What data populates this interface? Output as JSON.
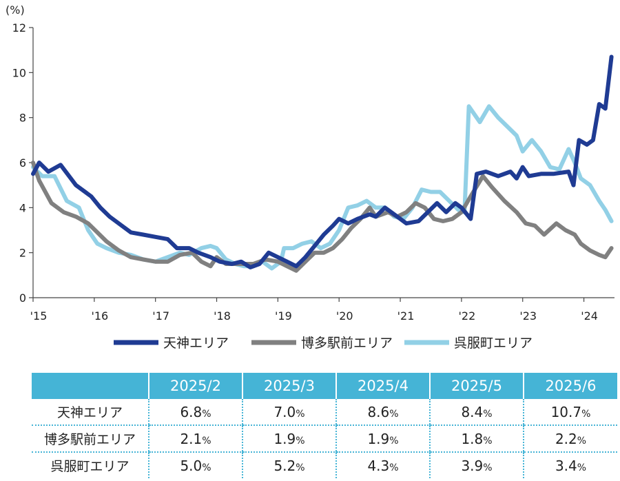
{
  "chart_data": {
    "type": "line",
    "y_unit_label": "(%)",
    "ylim": [
      0,
      12
    ],
    "y_ticks": [
      "0",
      "2",
      "4",
      "6",
      "8",
      "10",
      "12"
    ],
    "x_tick_labels": [
      "'15",
      "'16",
      "'17",
      "'18",
      "'19",
      "'20",
      "'21",
      "'22",
      "'23",
      "'24"
    ],
    "x_start": 2015.0,
    "x_end": 2024.5,
    "grid": false,
    "legend_position": "bottom",
    "series": [
      {
        "name": "天神エリア",
        "color": "#1f3b93",
        "points": [
          [
            2015.0,
            5.5
          ],
          [
            2015.1,
            6.0
          ],
          [
            2015.25,
            5.6
          ],
          [
            2015.45,
            5.9
          ],
          [
            2015.7,
            5.0
          ],
          [
            2015.95,
            4.5
          ],
          [
            2016.1,
            4.0
          ],
          [
            2016.25,
            3.6
          ],
          [
            2016.45,
            3.2
          ],
          [
            2016.6,
            2.9
          ],
          [
            2016.8,
            2.8
          ],
          [
            2017.0,
            2.7
          ],
          [
            2017.2,
            2.6
          ],
          [
            2017.35,
            2.2
          ],
          [
            2017.55,
            2.2
          ],
          [
            2017.7,
            2.0
          ],
          [
            2017.9,
            1.8
          ],
          [
            2018.05,
            1.6
          ],
          [
            2018.25,
            1.5
          ],
          [
            2018.4,
            1.6
          ],
          [
            2018.55,
            1.35
          ],
          [
            2018.7,
            1.5
          ],
          [
            2018.85,
            2.0
          ],
          [
            2019.0,
            1.8
          ],
          [
            2019.15,
            1.6
          ],
          [
            2019.3,
            1.4
          ],
          [
            2019.45,
            1.8
          ],
          [
            2019.6,
            2.3
          ],
          [
            2019.75,
            2.8
          ],
          [
            2019.9,
            3.2
          ],
          [
            2020.0,
            3.5
          ],
          [
            2020.15,
            3.3
          ],
          [
            2020.3,
            3.5
          ],
          [
            2020.5,
            3.7
          ],
          [
            2020.6,
            3.6
          ],
          [
            2020.75,
            4.0
          ],
          [
            2020.9,
            3.7
          ],
          [
            2021.1,
            3.3
          ],
          [
            2021.3,
            3.4
          ],
          [
            2021.45,
            3.8
          ],
          [
            2021.6,
            4.2
          ],
          [
            2021.75,
            3.8
          ],
          [
            2021.9,
            4.2
          ],
          [
            2022.0,
            4.0
          ],
          [
            2022.15,
            3.5
          ],
          [
            2022.25,
            5.5
          ],
          [
            2022.4,
            5.6
          ],
          [
            2022.6,
            5.4
          ],
          [
            2022.8,
            5.6
          ],
          [
            2022.9,
            5.3
          ],
          [
            2023.0,
            5.8
          ],
          [
            2023.1,
            5.4
          ],
          [
            2023.3,
            5.5
          ],
          [
            2023.5,
            5.5
          ],
          [
            2023.75,
            5.6
          ],
          [
            2023.83,
            5.0
          ],
          [
            2023.92,
            7.0
          ],
          [
            2024.05,
            6.8
          ],
          [
            2024.15,
            7.0
          ],
          [
            2024.25,
            8.6
          ],
          [
            2024.35,
            8.4
          ],
          [
            2024.45,
            10.7
          ]
        ]
      },
      {
        "name": "博多駅前エリア",
        "color": "#808080",
        "points": [
          [
            2015.0,
            6.0
          ],
          [
            2015.1,
            5.2
          ],
          [
            2015.3,
            4.2
          ],
          [
            2015.5,
            3.8
          ],
          [
            2015.7,
            3.6
          ],
          [
            2015.9,
            3.3
          ],
          [
            2016.05,
            2.9
          ],
          [
            2016.2,
            2.5
          ],
          [
            2016.4,
            2.1
          ],
          [
            2016.6,
            1.8
          ],
          [
            2016.8,
            1.7
          ],
          [
            2017.0,
            1.6
          ],
          [
            2017.2,
            1.6
          ],
          [
            2017.4,
            1.9
          ],
          [
            2017.6,
            2.0
          ],
          [
            2017.75,
            1.6
          ],
          [
            2017.9,
            1.4
          ],
          [
            2018.0,
            1.8
          ],
          [
            2018.15,
            1.5
          ],
          [
            2018.3,
            1.5
          ],
          [
            2018.45,
            1.5
          ],
          [
            2018.6,
            1.5
          ],
          [
            2018.8,
            1.7
          ],
          [
            2019.0,
            1.6
          ],
          [
            2019.15,
            1.4
          ],
          [
            2019.3,
            1.2
          ],
          [
            2019.45,
            1.6
          ],
          [
            2019.6,
            2.0
          ],
          [
            2019.75,
            2.0
          ],
          [
            2019.9,
            2.2
          ],
          [
            2020.05,
            2.6
          ],
          [
            2020.2,
            3.1
          ],
          [
            2020.35,
            3.5
          ],
          [
            2020.5,
            4.0
          ],
          [
            2020.6,
            3.6
          ],
          [
            2020.8,
            3.8
          ],
          [
            2020.95,
            3.6
          ],
          [
            2021.1,
            3.8
          ],
          [
            2021.25,
            4.2
          ],
          [
            2021.4,
            4.0
          ],
          [
            2021.55,
            3.5
          ],
          [
            2021.7,
            3.4
          ],
          [
            2021.85,
            3.5
          ],
          [
            2022.0,
            3.8
          ],
          [
            2022.15,
            4.5
          ],
          [
            2022.35,
            5.4
          ],
          [
            2022.5,
            4.9
          ],
          [
            2022.7,
            4.3
          ],
          [
            2022.9,
            3.8
          ],
          [
            2023.05,
            3.3
          ],
          [
            2023.2,
            3.2
          ],
          [
            2023.35,
            2.8
          ],
          [
            2023.55,
            3.3
          ],
          [
            2023.7,
            3.0
          ],
          [
            2023.85,
            2.8
          ],
          [
            2023.95,
            2.4
          ],
          [
            2024.1,
            2.1
          ],
          [
            2024.25,
            1.9
          ],
          [
            2024.35,
            1.8
          ],
          [
            2024.45,
            2.2
          ]
        ]
      },
      {
        "name": "呉服町エリア",
        "color": "#92d0e6",
        "points": [
          [
            2015.0,
            5.8
          ],
          [
            2015.15,
            5.4
          ],
          [
            2015.35,
            5.4
          ],
          [
            2015.55,
            4.3
          ],
          [
            2015.75,
            4.0
          ],
          [
            2015.9,
            3.0
          ],
          [
            2016.05,
            2.4
          ],
          [
            2016.2,
            2.2
          ],
          [
            2016.4,
            2.0
          ],
          [
            2016.6,
            1.9
          ],
          [
            2016.8,
            1.7
          ],
          [
            2017.0,
            1.6
          ],
          [
            2017.2,
            1.8
          ],
          [
            2017.4,
            2.0
          ],
          [
            2017.55,
            1.9
          ],
          [
            2017.75,
            2.2
          ],
          [
            2017.9,
            2.3
          ],
          [
            2018.0,
            2.2
          ],
          [
            2018.15,
            1.7
          ],
          [
            2018.3,
            1.5
          ],
          [
            2018.45,
            1.4
          ],
          [
            2018.6,
            1.4
          ],
          [
            2018.75,
            1.6
          ],
          [
            2018.9,
            1.3
          ],
          [
            2019.05,
            1.6
          ],
          [
            2019.1,
            2.2
          ],
          [
            2019.25,
            2.2
          ],
          [
            2019.4,
            2.4
          ],
          [
            2019.55,
            2.5
          ],
          [
            2019.7,
            2.2
          ],
          [
            2019.85,
            2.4
          ],
          [
            2020.0,
            3.0
          ],
          [
            2020.15,
            4.0
          ],
          [
            2020.3,
            4.1
          ],
          [
            2020.45,
            4.3
          ],
          [
            2020.6,
            4.0
          ],
          [
            2020.75,
            4.0
          ],
          [
            2020.9,
            3.6
          ],
          [
            2021.05,
            3.5
          ],
          [
            2021.2,
            4.0
          ],
          [
            2021.35,
            4.8
          ],
          [
            2021.5,
            4.7
          ],
          [
            2021.65,
            4.7
          ],
          [
            2021.8,
            4.3
          ],
          [
            2021.95,
            3.9
          ],
          [
            2022.05,
            3.8
          ],
          [
            2022.12,
            8.5
          ],
          [
            2022.3,
            7.8
          ],
          [
            2022.45,
            8.5
          ],
          [
            2022.6,
            8.0
          ],
          [
            2022.75,
            7.6
          ],
          [
            2022.9,
            7.2
          ],
          [
            2023.0,
            6.5
          ],
          [
            2023.15,
            7.0
          ],
          [
            2023.3,
            6.5
          ],
          [
            2023.45,
            5.8
          ],
          [
            2023.6,
            5.7
          ],
          [
            2023.75,
            6.6
          ],
          [
            2023.85,
            6.0
          ],
          [
            2023.95,
            5.3
          ],
          [
            2024.1,
            5.0
          ],
          [
            2024.25,
            4.3
          ],
          [
            2024.35,
            3.9
          ],
          [
            2024.45,
            3.4
          ]
        ]
      }
    ]
  },
  "table": {
    "headers": [
      "",
      "2025/2",
      "2025/3",
      "2025/4",
      "2025/5",
      "2025/6"
    ],
    "rows": [
      {
        "label": "天神エリア",
        "values": [
          "6.8",
          "7.0",
          "8.6",
          "8.4",
          "10.7"
        ],
        "unit": "%"
      },
      {
        "label": "博多駅前エリア",
        "values": [
          "2.1",
          "1.9",
          "1.9",
          "1.8",
          "2.2"
        ],
        "unit": "%"
      },
      {
        "label": "呉服町エリア",
        "values": [
          "5.0",
          "5.2",
          "4.3",
          "3.9",
          "3.4"
        ],
        "unit": "%"
      }
    ]
  }
}
